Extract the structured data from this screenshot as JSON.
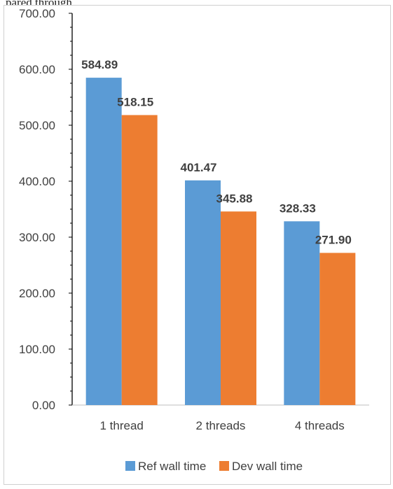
{
  "caption": "pared through",
  "chart_data": {
    "type": "bar",
    "categories": [
      "1 thread",
      "2 threads",
      "4 threads"
    ],
    "series": [
      {
        "name": "Ref wall time",
        "values": [
          584.89,
          401.47,
          328.33
        ],
        "color": "#5b9bd5"
      },
      {
        "name": "Dev wall time",
        "values": [
          518.15,
          345.88,
          271.9
        ],
        "color": "#ed7d31"
      }
    ],
    "data_labels": [
      [
        "584.89",
        "401.47",
        "328.33"
      ],
      [
        "518.15",
        "345.88",
        "271.90"
      ]
    ],
    "yticks": [
      "0.00",
      "100.00",
      "200.00",
      "300.00",
      "400.00",
      "500.00",
      "600.00",
      "700.00"
    ],
    "ylim": [
      0,
      700
    ],
    "grid": false,
    "legend_position": "bottom",
    "title": "",
    "xlabel": "",
    "ylabel": ""
  }
}
